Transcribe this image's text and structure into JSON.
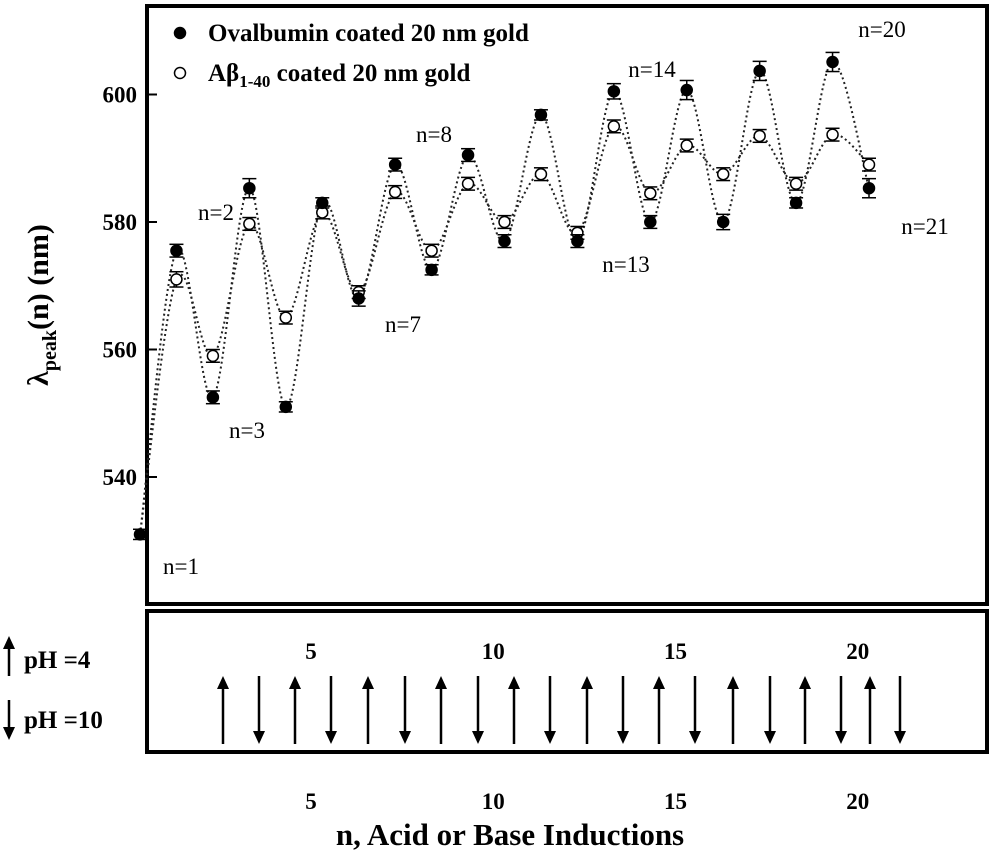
{
  "chart_data": {
    "type": "scatter",
    "title": "",
    "xlabel": "n, Acid or Base Inductions",
    "ylabel": "λpeak(n) (nm)",
    "ylabel_parts": {
      "main": "λ",
      "sub": "peak",
      "rest": "(n) (nm)"
    },
    "xlim": [
      0,
      23
    ],
    "ylim": [
      522,
      612
    ],
    "yticks": [
      540,
      560,
      580,
      600
    ],
    "xticks": [
      5,
      10,
      15,
      20
    ],
    "series": [
      {
        "name": "Ovalbumin coated 20 nm gold",
        "marker": "filled-circle",
        "x": [
          1,
          2,
          3,
          4,
          5,
          6,
          7,
          8,
          9,
          10,
          11,
          12,
          13,
          14,
          15,
          16,
          17,
          18,
          19,
          20,
          21
        ],
        "values": [
          531,
          575.5,
          552.5,
          585.3,
          551,
          583,
          568,
          589,
          572.5,
          590.5,
          577,
          596.8,
          577,
          600.5,
          580,
          600.7,
          580,
          603.7,
          583,
          605.1,
          585.3
        ],
        "errors": [
          0.8,
          1,
          1,
          1.5,
          0.8,
          0.8,
          1.2,
          1,
          0.8,
          1,
          1,
          0.8,
          1,
          1.2,
          1,
          1.5,
          1.2,
          1.5,
          0.8,
          1.5,
          1.5
        ]
      },
      {
        "name": "Aβ1-40 coated 20 nm gold",
        "name_parts": {
          "main": "Aβ",
          "sub": "1-40",
          "rest": " coated 20 nm gold"
        },
        "marker": "open-circle",
        "x": [
          2,
          3,
          4,
          5,
          6,
          7,
          8,
          9,
          10,
          11,
          12,
          13,
          14,
          15,
          16,
          17,
          18,
          19,
          20,
          21
        ],
        "values": [
          571,
          559,
          579.7,
          565,
          581.5,
          569,
          584.7,
          575.5,
          586,
          580,
          587.5,
          578.3,
          595,
          584.5,
          592,
          587.5,
          593.5,
          586,
          593.7,
          589
        ],
        "errors": [
          1.2,
          1,
          1,
          1,
          1,
          1,
          1,
          1,
          1,
          1,
          1,
          1,
          1,
          1,
          1,
          1,
          1,
          1,
          1,
          1
        ]
      }
    ],
    "annotations": [
      {
        "text": "n=1",
        "n": 1
      },
      {
        "text": "n=2",
        "n": 2
      },
      {
        "text": "n=3",
        "n": 3
      },
      {
        "text": "n=7",
        "n": 7
      },
      {
        "text": "n=8",
        "n": 8
      },
      {
        "text": "n=13",
        "n": 13
      },
      {
        "text": "n=14",
        "n": 14
      },
      {
        "text": "n=20",
        "n": 20
      },
      {
        "text": "n=21",
        "n": 21
      }
    ],
    "ph_panel": {
      "up_label": "pH =4",
      "down_label": "pH =10",
      "arrows": [
        "up",
        "down",
        "up",
        "down",
        "up",
        "down",
        "up",
        "down",
        "up",
        "down",
        "up",
        "down",
        "up",
        "down",
        "up",
        "down",
        "up",
        "down",
        "up",
        "down"
      ]
    }
  }
}
